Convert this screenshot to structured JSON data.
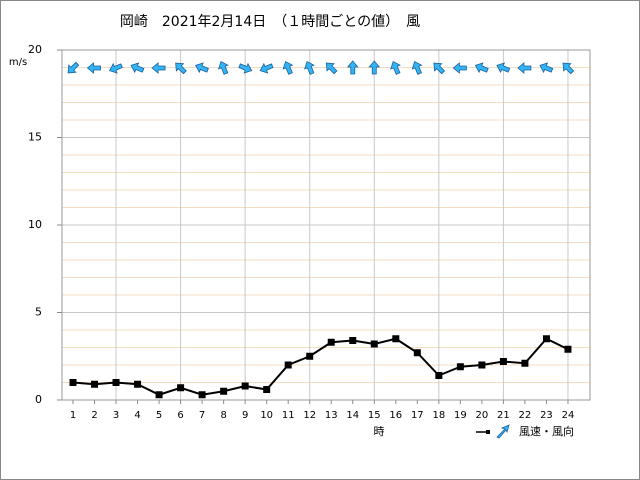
{
  "chart_data": {
    "type": "line",
    "title": "岡崎　2021年2月14日　（１時間ごとの値）　風",
    "y_label": "m/s",
    "x_label": "時",
    "legend": "風速・風向",
    "categories": [
      "1",
      "2",
      "3",
      "4",
      "5",
      "6",
      "7",
      "8",
      "9",
      "10",
      "11",
      "12",
      "13",
      "14",
      "15",
      "16",
      "17",
      "18",
      "19",
      "20",
      "21",
      "22",
      "23",
      "24"
    ],
    "values": [
      1.0,
      0.9,
      1.0,
      0.9,
      0.3,
      0.7,
      0.3,
      0.5,
      0.8,
      0.6,
      2.0,
      2.5,
      3.3,
      3.4,
      3.2,
      3.5,
      2.7,
      1.4,
      1.9,
      2.0,
      2.2,
      2.1,
      3.5,
      2.9
    ],
    "directions": [
      45,
      90,
      67.5,
      112.5,
      90,
      135,
      112.5,
      157.5,
      292.5,
      67.5,
      157.5,
      157.5,
      135,
      180,
      180,
      157.5,
      157.5,
      135,
      90,
      112.5,
      112.5,
      90,
      112.5,
      135
    ],
    "color": "#000000",
    "arrow_color": "#33b5f5",
    "ylim": [
      0,
      20
    ],
    "yticks": [
      0,
      5,
      10,
      15,
      20
    ],
    "grid": true
  }
}
